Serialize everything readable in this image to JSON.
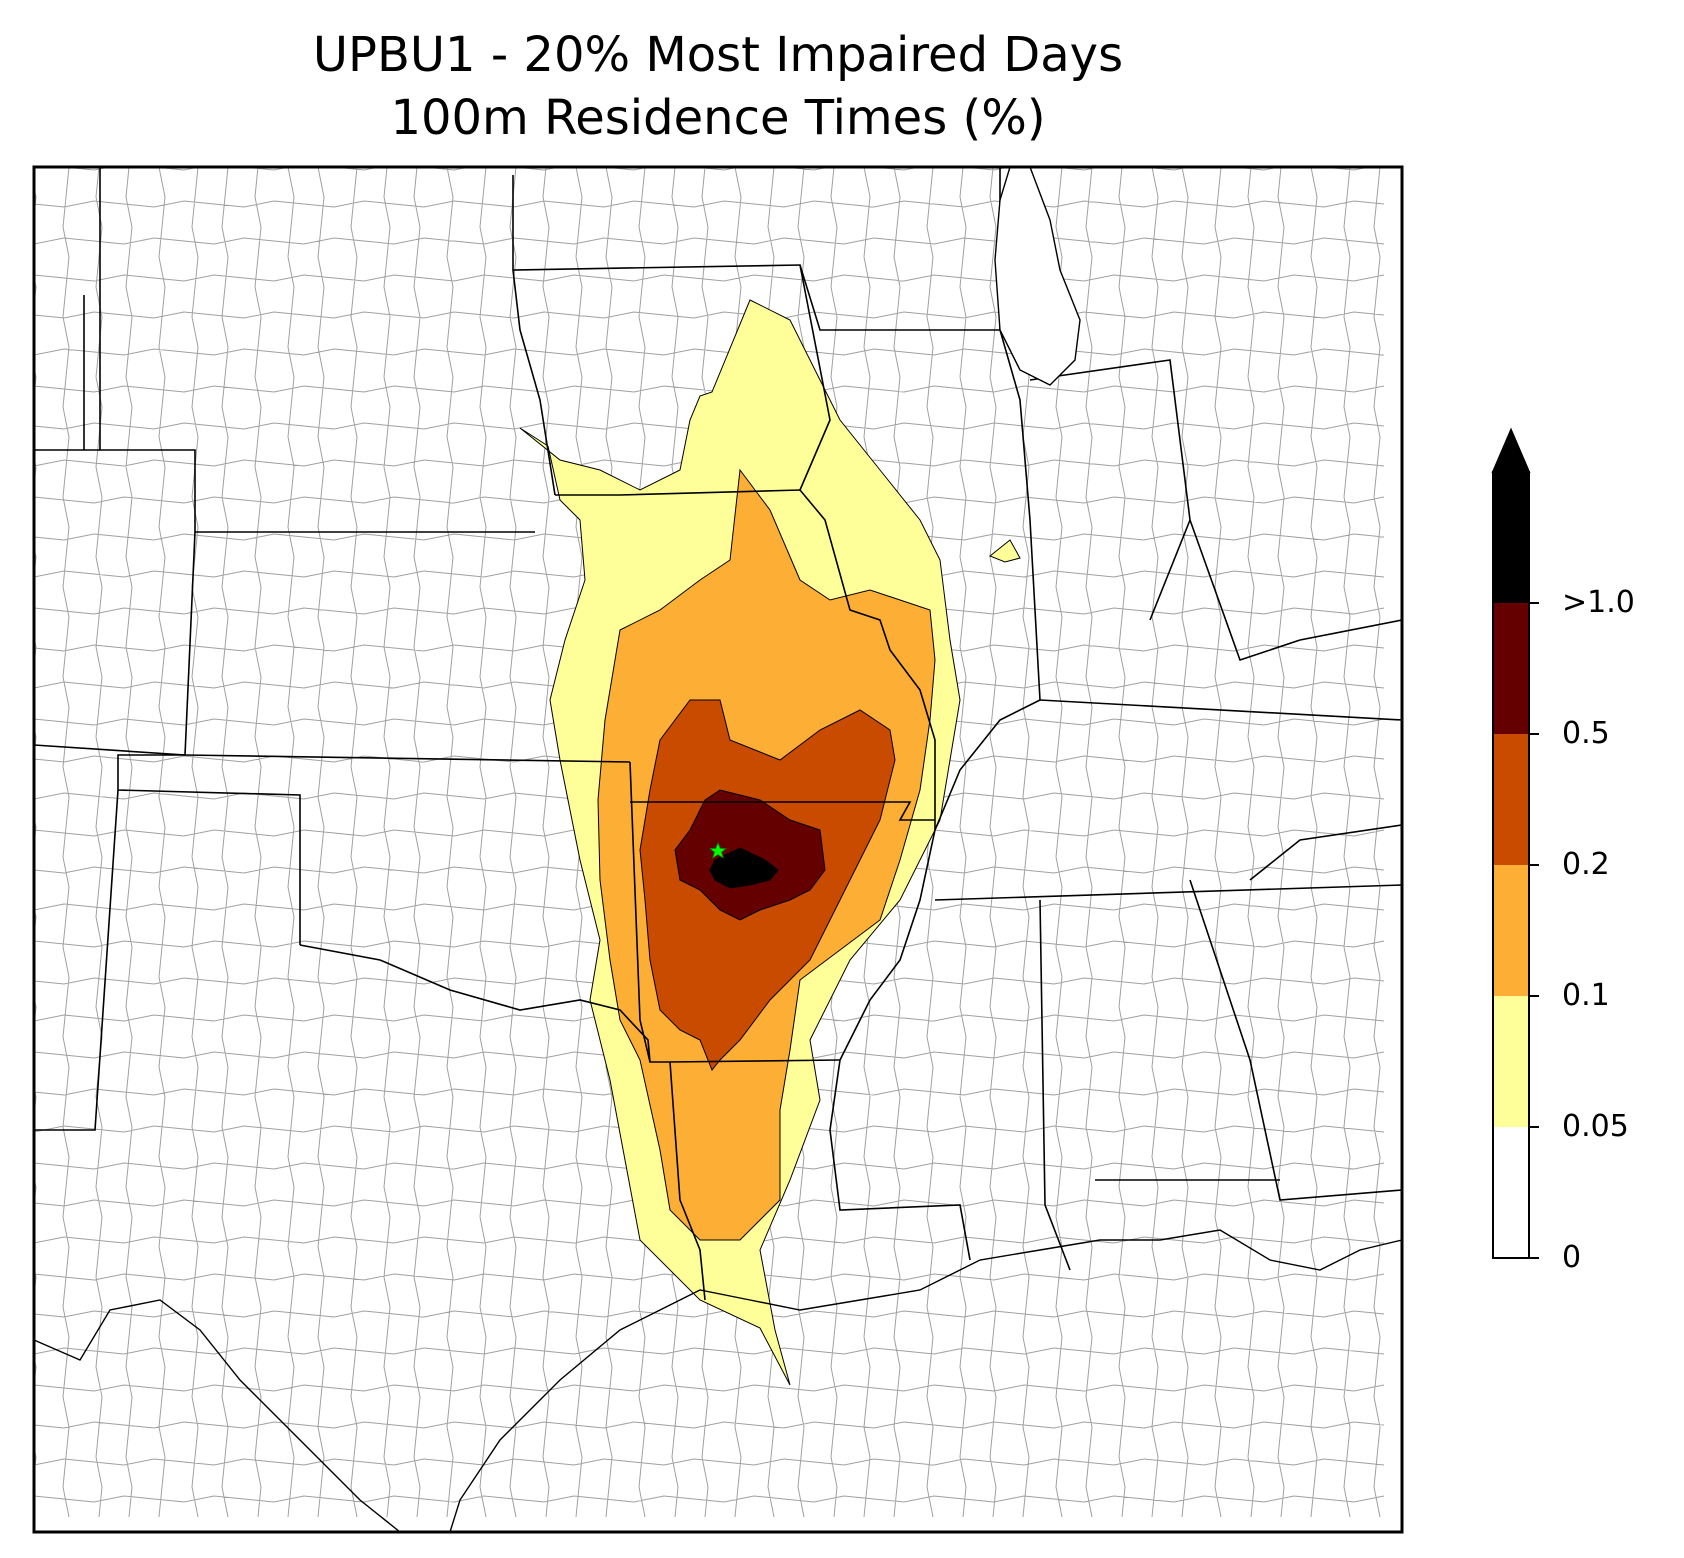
{
  "title_line1": "UPBU1 - 20% Most Impaired Days",
  "title_line2": "100m Residence Times (%)",
  "legend": {
    "levels": [
      0,
      0.05,
      0.1,
      0.2,
      0.5,
      1.0
    ],
    "labels": [
      "0",
      "0.05",
      "0.1",
      "0.2",
      "0.5",
      ">1.0"
    ],
    "colors": [
      "#ffffff",
      "#ffff99",
      "#fdae35",
      "#c84b00",
      "#640000",
      "#000000"
    ],
    "extend": "max"
  },
  "receptor": {
    "marker": "star-icon",
    "color": "#00ff00"
  },
  "map_colors": {
    "state_border": "#000000",
    "county_border": "#a0a0a0",
    "contour_edge": "#000000"
  }
}
